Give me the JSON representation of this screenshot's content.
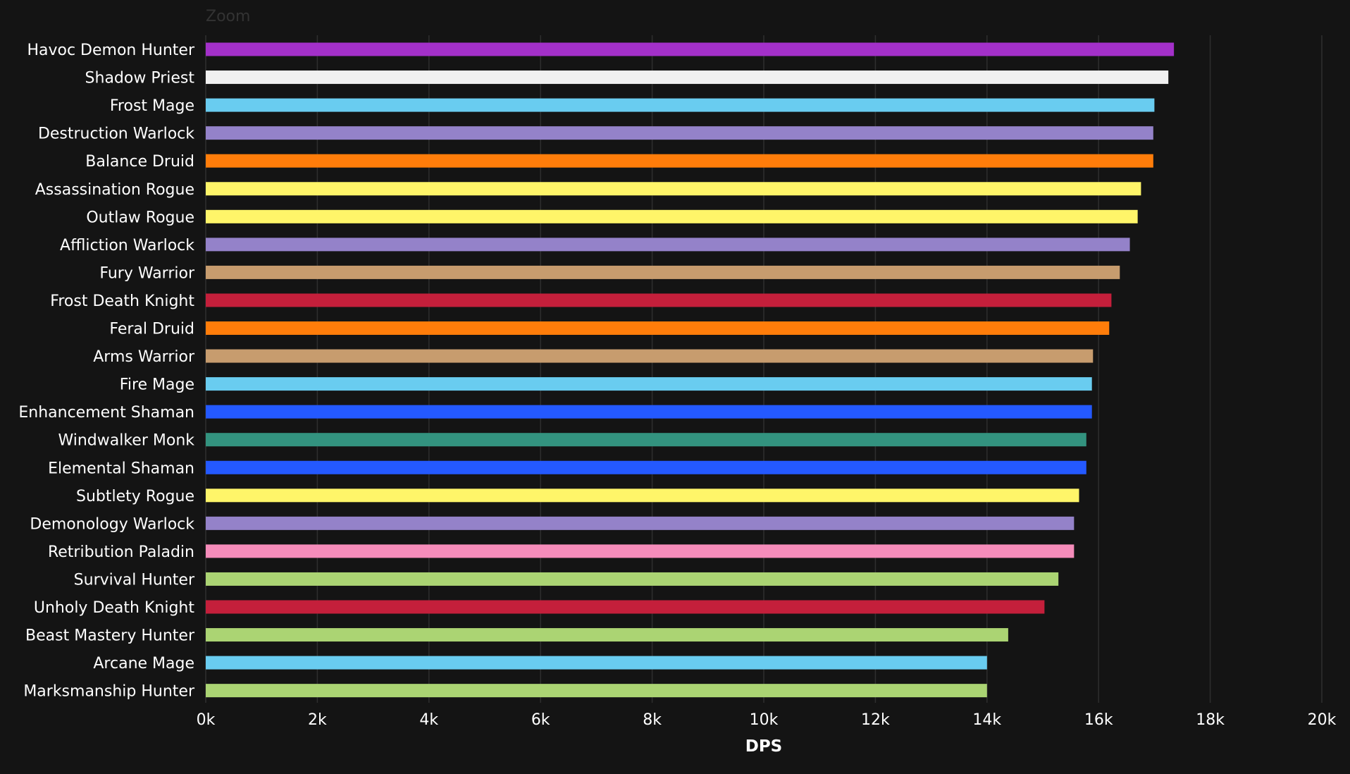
{
  "zoom_label": "Zoom",
  "chart_data": {
    "type": "bar",
    "orientation": "horizontal",
    "xlabel": "DPS",
    "xlim": [
      0,
      20000
    ],
    "x_ticks": [
      0,
      2000,
      4000,
      6000,
      8000,
      10000,
      12000,
      14000,
      16000,
      18000,
      20000
    ],
    "x_tick_labels": [
      "0k",
      "2k",
      "4k",
      "6k",
      "8k",
      "10k",
      "12k",
      "14k",
      "16k",
      "18k",
      "20k"
    ],
    "grid": true,
    "categories": [
      "Havoc Demon Hunter",
      "Shadow Priest",
      "Frost Mage",
      "Destruction Warlock",
      "Balance Druid",
      "Assassination Rogue",
      "Outlaw Rogue",
      "Affliction Warlock",
      "Fury Warrior",
      "Frost Death Knight",
      "Feral Druid",
      "Arms Warrior",
      "Fire Mage",
      "Enhancement Shaman",
      "Windwalker Monk",
      "Elemental Shaman",
      "Subtlety Rogue",
      "Demonology Warlock",
      "Retribution Paladin",
      "Survival Hunter",
      "Unholy Death Knight",
      "Beast Mastery Hunter",
      "Arcane Mage",
      "Marksmanship Hunter"
    ],
    "values": [
      17350,
      17250,
      17000,
      16980,
      16980,
      16760,
      16700,
      16560,
      16380,
      16230,
      16190,
      15900,
      15880,
      15880,
      15780,
      15780,
      15650,
      15560,
      15560,
      15280,
      15030,
      14380,
      14000,
      14000
    ],
    "colors": [
      "#a330c9",
      "#f0f0f0",
      "#69ccf0",
      "#9482c9",
      "#ff7d0a",
      "#fff569",
      "#fff569",
      "#9482c9",
      "#c79c6e",
      "#c41f3b",
      "#ff7d0a",
      "#c79c6e",
      "#69ccf0",
      "#2459ff",
      "#33937f",
      "#2459ff",
      "#fff569",
      "#9482c9",
      "#f58cba",
      "#abd473",
      "#c41f3b",
      "#abd473",
      "#69ccf0",
      "#abd473"
    ]
  }
}
